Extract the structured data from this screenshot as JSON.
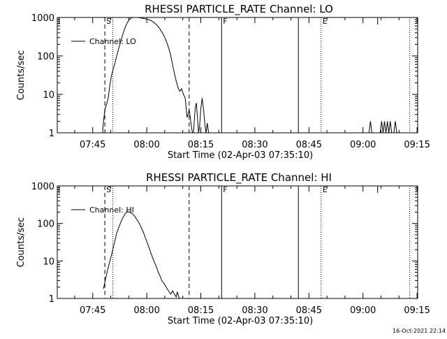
{
  "footer_timestamp": "16-Oct-2021 22:14",
  "chart_data": [
    {
      "type": "line",
      "title": "RHESSI PARTICLE_RATE Channel: LO",
      "xlabel": "Start Time (02-Apr-03 07:35:10)",
      "ylabel": "Counts/sec",
      "x_unit": "minutes since 07:35:10",
      "xlim": [
        0,
        100
      ],
      "y_scale": "log",
      "ylim": [
        1,
        1000
      ],
      "x_ticks": [
        {
          "label": "07:45",
          "t": 9.83
        },
        {
          "label": "08:00",
          "t": 24.83
        },
        {
          "label": "08:15",
          "t": 39.83
        },
        {
          "label": "08:30",
          "t": 54.83
        },
        {
          "label": "08:45",
          "t": 69.83
        },
        {
          "label": "09:00",
          "t": 84.83
        },
        {
          "label": "09:15",
          "t": 99.83
        }
      ],
      "y_ticks": [
        {
          "label": "1",
          "v": 1
        },
        {
          "label": "10",
          "v": 10
        },
        {
          "label": "100",
          "v": 100
        },
        {
          "label": "1000",
          "v": 1000
        }
      ],
      "legend": {
        "position": "top-left",
        "label": "Channel: LO"
      },
      "markers": [
        {
          "t": 0.5,
          "style": "solid",
          "label": "",
          "tall": false
        },
        {
          "t": 13.2,
          "style": "dashed",
          "label": "S",
          "tall": true
        },
        {
          "t": 15.4,
          "style": "dotted",
          "label": "",
          "tall": true
        },
        {
          "t": 36.6,
          "style": "dashed",
          "label": "",
          "tall": true
        },
        {
          "t": 45.6,
          "style": "solid",
          "label": "F",
          "tall": true
        },
        {
          "t": 66.9,
          "style": "solid",
          "label": "",
          "tall": true
        },
        {
          "t": 73.2,
          "style": "dotted",
          "label": "E",
          "tall": true
        },
        {
          "t": 88.9,
          "style": "solid",
          "label": "",
          "tall": false
        },
        {
          "t": 97.8,
          "style": "dotted",
          "label": "",
          "tall": true
        }
      ],
      "series": [
        {
          "name": "Channel: LO",
          "x": [
            12.6,
            12.7,
            13.2,
            13.8,
            14.2,
            14.5,
            15.0,
            15.5,
            16.0,
            16.5,
            17.0,
            17.5,
            18.0,
            18.5,
            19.0,
            19.5,
            20.0,
            20.5,
            21.0,
            21.5,
            22.0,
            22.5,
            23.0,
            23.5,
            24.0,
            24.5,
            25.0,
            25.5,
            26.0,
            26.5,
            27.0,
            27.5,
            28.0,
            28.5,
            29.0,
            29.5,
            30.0,
            30.5,
            31.0,
            31.5,
            32.0,
            32.5,
            33.0,
            33.5,
            34.0,
            34.5,
            35.0,
            35.5,
            35.8,
            36.0,
            36.3,
            36.6,
            36.9,
            37.2,
            37.5,
            37.8,
            38.0,
            38.3,
            38.6,
            38.9,
            39.2,
            39.5,
            39.8,
            40.2,
            40.6,
            41.0,
            41.3,
            41.6,
            42.0,
            42.4
          ],
          "y": [
            1,
            1.5,
            4,
            6,
            9,
            15,
            30,
            45,
            65,
            100,
            150,
            220,
            320,
            450,
            600,
            750,
            880,
            980,
            1000,
            1000,
            1000,
            1000,
            980,
            960,
            940,
            920,
            900,
            870,
            830,
            780,
            720,
            650,
            580,
            500,
            420,
            350,
            280,
            210,
            150,
            100,
            60,
            35,
            22,
            15,
            12,
            14,
            10,
            8,
            4,
            2.5,
            3,
            4,
            2.5,
            1.5,
            1,
            1,
            2,
            4.5,
            6,
            2.5,
            1,
            1.5,
            4,
            8,
            4,
            1.5,
            1,
            1.8,
            1,
            1
          ]
        },
        {
          "name": "",
          "x": [
            86.5,
            86.9,
            87.3,
            89.6,
            90.0,
            90.4,
            90.8,
            91.2,
            91.6,
            92.0,
            92.4,
            92.8,
            93.4,
            93.8,
            94.2
          ],
          "y": [
            1,
            2,
            1,
            1,
            2,
            1,
            2,
            1,
            2,
            1,
            2,
            1,
            1,
            2,
            1
          ]
        }
      ]
    },
    {
      "type": "line",
      "title": "RHESSI PARTICLE_RATE Channel: HI",
      "xlabel": "Start Time (02-Apr-03 07:35:10)",
      "ylabel": "Counts/sec",
      "x_unit": "minutes since 07:35:10",
      "xlim": [
        0,
        100
      ],
      "y_scale": "log",
      "ylim": [
        1,
        1000
      ],
      "x_ticks": [
        {
          "label": "07:45",
          "t": 9.83
        },
        {
          "label": "08:00",
          "t": 24.83
        },
        {
          "label": "08:15",
          "t": 39.83
        },
        {
          "label": "08:30",
          "t": 54.83
        },
        {
          "label": "08:45",
          "t": 69.83
        },
        {
          "label": "09:00",
          "t": 84.83
        },
        {
          "label": "09:15",
          "t": 99.83
        }
      ],
      "y_ticks": [
        {
          "label": "1",
          "v": 1
        },
        {
          "label": "10",
          "v": 10
        },
        {
          "label": "100",
          "v": 100
        },
        {
          "label": "1000",
          "v": 1000
        }
      ],
      "legend": {
        "position": "top-left",
        "label": "Channel: HI"
      },
      "markers": [
        {
          "t": 0.5,
          "style": "solid",
          "label": "",
          "tall": false
        },
        {
          "t": 13.2,
          "style": "dashed",
          "label": "S",
          "tall": true
        },
        {
          "t": 15.4,
          "style": "dotted",
          "label": "",
          "tall": true
        },
        {
          "t": 36.6,
          "style": "dashed",
          "label": "",
          "tall": true
        },
        {
          "t": 45.6,
          "style": "solid",
          "label": "F",
          "tall": true
        },
        {
          "t": 66.9,
          "style": "solid",
          "label": "",
          "tall": true
        },
        {
          "t": 73.2,
          "style": "dotted",
          "label": "E",
          "tall": true
        },
        {
          "t": 88.9,
          "style": "solid",
          "label": "",
          "tall": false
        },
        {
          "t": 97.8,
          "style": "dotted",
          "label": "",
          "tall": true
        }
      ],
      "series": [
        {
          "name": "Channel: HI",
          "x": [
            12.8,
            13.0,
            13.3,
            13.6,
            14.0,
            14.5,
            15.0,
            15.5,
            16.0,
            16.5,
            17.0,
            17.5,
            18.0,
            18.5,
            19.0,
            19.5,
            20.0,
            20.5,
            21.0,
            21.5,
            22.0,
            22.5,
            23.0,
            23.5,
            24.0,
            24.5,
            25.0,
            25.5,
            26.0,
            26.5,
            27.0,
            27.5,
            28.0,
            28.5,
            29.0,
            29.5,
            30.0,
            30.5,
            31.0,
            31.5,
            32.0,
            32.5,
            33.0,
            33.3,
            33.6,
            33.9,
            34.2,
            34.5
          ],
          "y": [
            1.8,
            2.2,
            3,
            4,
            6,
            9,
            14,
            22,
            35,
            55,
            75,
            100,
            130,
            160,
            190,
            210,
            200,
            190,
            175,
            155,
            130,
            110,
            90,
            70,
            55,
            40,
            30,
            22,
            16,
            12,
            9,
            7,
            5,
            4,
            3,
            2.6,
            2.2,
            1.8,
            1.5,
            1.3,
            1.6,
            1.3,
            1.1,
            1.5,
            1.2,
            1,
            1,
            1
          ]
        }
      ]
    }
  ]
}
